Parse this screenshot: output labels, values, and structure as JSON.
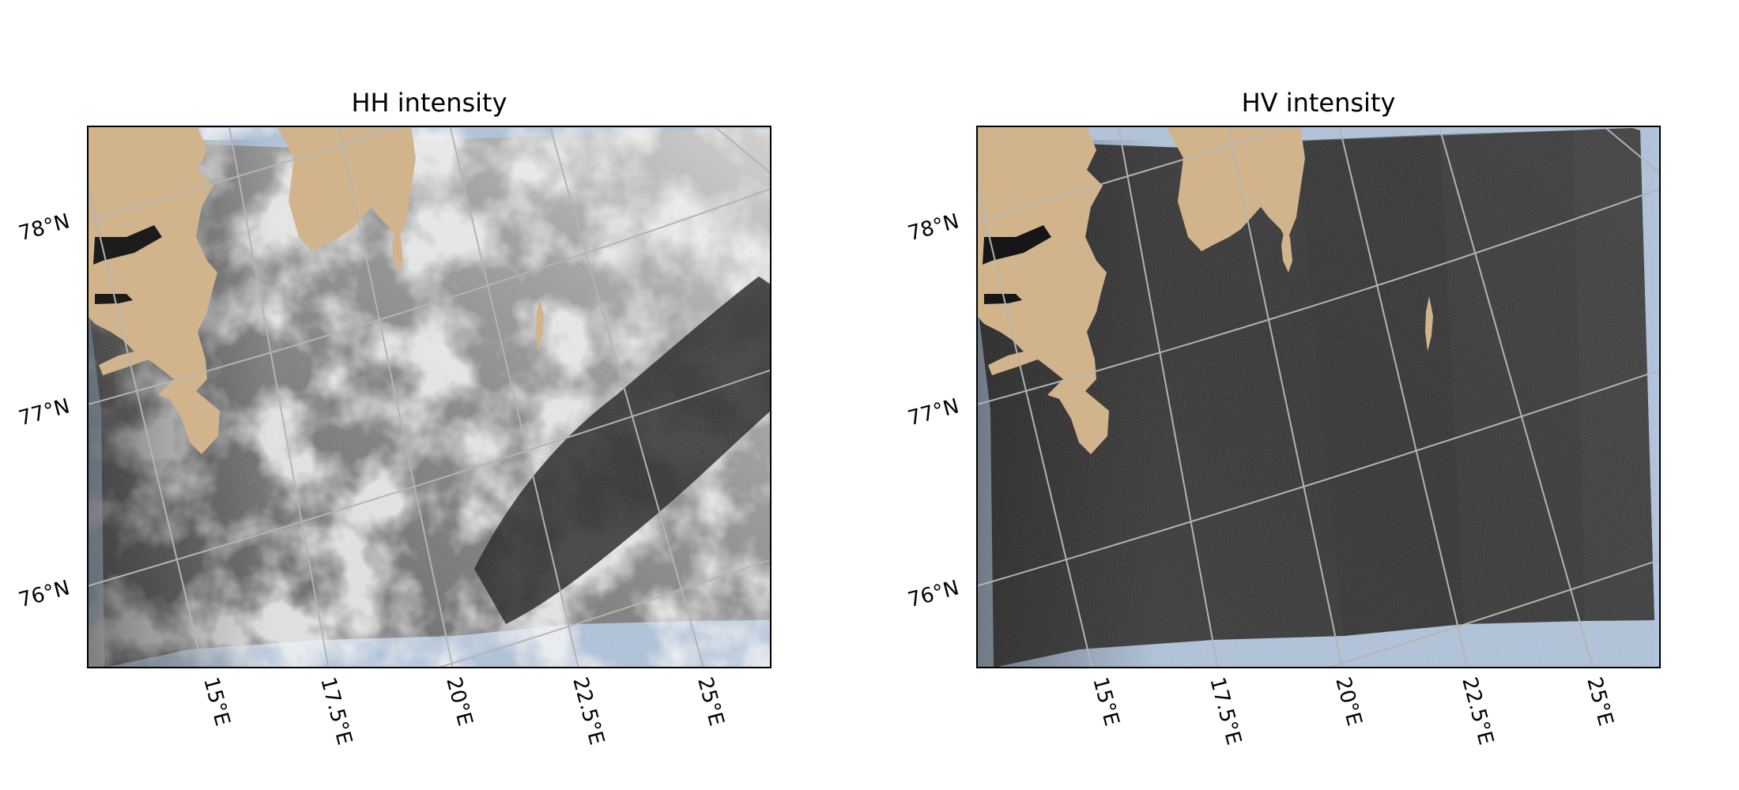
{
  "colors": {
    "land": "#d2b48c",
    "ocean": "#b0c4de",
    "gridline": "#b4b4b4",
    "frame": "#000000"
  },
  "maps": [
    {
      "id": "hh",
      "title": "HH intensity",
      "lat_labels": [
        "78°N",
        "77°N",
        "76°N"
      ],
      "lon_labels": [
        "15°E",
        "17.5°E",
        "20°E",
        "22.5°E",
        "25°E"
      ],
      "tone": "hh"
    },
    {
      "id": "hv",
      "title": "HV intensity",
      "lat_labels": [
        "78°N",
        "77°N",
        "76°N"
      ],
      "lon_labels": [
        "15°E",
        "17.5°E",
        "20°E",
        "22.5°E",
        "25°E"
      ],
      "tone": "hv"
    }
  ]
}
